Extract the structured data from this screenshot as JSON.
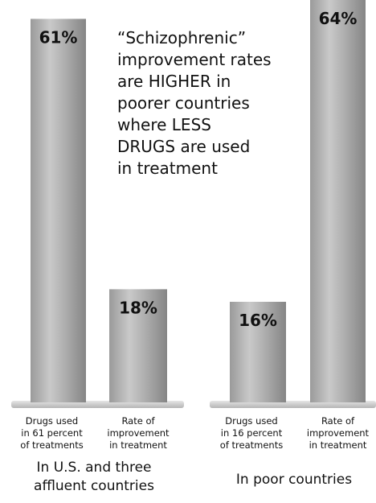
{
  "chart_data": {
    "type": "bar",
    "annotation": [
      "“Schizophrenic”",
      "improvement rates",
      "are HIGHER in",
      "poorer countries",
      "where LESS",
      "DRUGS are used",
      "in treatment"
    ],
    "groups": [
      {
        "label": [
          "In U.S. and three",
          "affluent countries"
        ],
        "bars": [
          {
            "category": [
              "Drugs used",
              "in 61 percent",
              "of treatments"
            ],
            "value": 61,
            "value_label": "61%"
          },
          {
            "category": [
              "Rate of",
              "improvement",
              "in treatment"
            ],
            "value": 18,
            "value_label": "18%"
          }
        ]
      },
      {
        "label": [
          "In poor countries"
        ],
        "bars": [
          {
            "category": [
              "Drugs used",
              "in 16 percent",
              "of treatments"
            ],
            "value": 16,
            "value_label": "16%"
          },
          {
            "category": [
              "Rate of",
              "improvement",
              "in treatment"
            ],
            "value": 64,
            "value_label": "64%"
          }
        ]
      }
    ],
    "ylim": [
      0,
      64
    ],
    "colors": {
      "bar_dark": "#8f8f8f",
      "bar_light": "#d4d4d4",
      "base": "#c8c8c8"
    }
  }
}
